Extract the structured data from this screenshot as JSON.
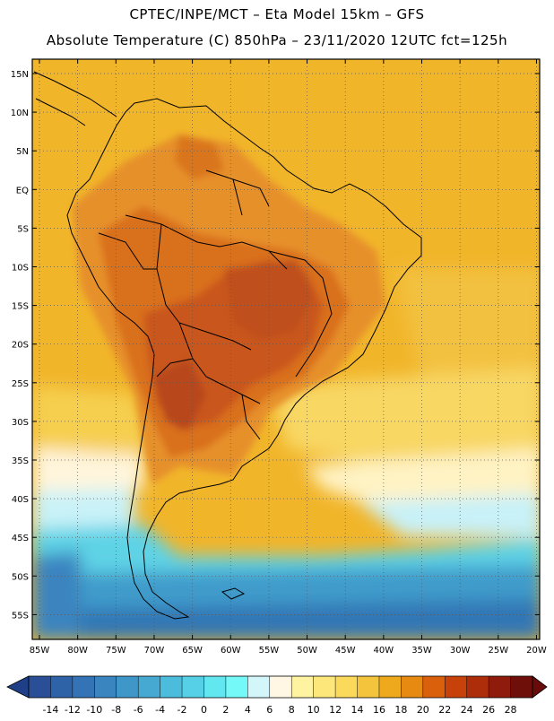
{
  "header": {
    "line1": "CPTEC/INPE/MCT –  Eta Model 15km – GFS",
    "line2": "Absolute Temperature (C) 850hPa – 23/11/2020 12UTC fct=125h"
  },
  "map": {
    "lat_labels": [
      "15N",
      "10N",
      "5N",
      "EQ",
      "5S",
      "10S",
      "15S",
      "20S",
      "25S",
      "30S",
      "35S",
      "40S",
      "45S",
      "50S",
      "55S"
    ],
    "lon_labels": [
      "85W",
      "80W",
      "75W",
      "70W",
      "65W",
      "60W",
      "55W",
      "50W",
      "45W",
      "40W",
      "35W",
      "30W",
      "25W",
      "20W"
    ]
  },
  "colorbar": {
    "tick_labels": [
      "-14",
      "-12",
      "-10",
      "-8",
      "-6",
      "-4",
      "-2",
      "0",
      "2",
      "4",
      "6",
      "8",
      "10",
      "12",
      "14",
      "16",
      "18",
      "20",
      "22",
      "24",
      "26",
      "28"
    ],
    "colors": [
      "#2a4f96",
      "#2f63a8",
      "#3473b5",
      "#3a84c0",
      "#3f97c9",
      "#46a9d2",
      "#4cbcdc",
      "#55d0e6",
      "#62e6f0",
      "#75f8f8",
      "#d2f6fa",
      "#fff7e3",
      "#fef3a0",
      "#fde77a",
      "#fbd95a",
      "#f5c43d",
      "#eeaa1c",
      "#e78a12",
      "#da600b",
      "#c7420a",
      "#ad2d0b",
      "#8e1b0b",
      "#6e1009"
    ],
    "left_extend_color": "#1f3f86",
    "right_extend_color": "#6a0b0b"
  }
}
